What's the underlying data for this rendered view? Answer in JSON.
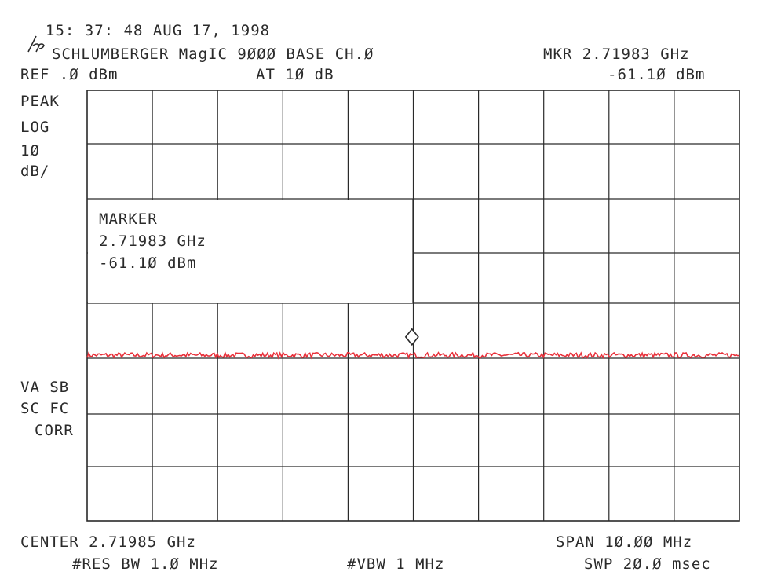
{
  "header": {
    "datetime": "15: 37: 48 AUG 17, 1998",
    "logo_icon": "hp-logo-icon",
    "instrument": "SCHLUMBERGER MagIC 9ØØØ BASE CH.Ø",
    "marker_readout": "MKR 2.71983 GHz",
    "ref_level": "REF .Ø dBm",
    "attenuation": "AT 1Ø dB",
    "marker_level_readout": "-61.1Ø dBm"
  },
  "left_labels": {
    "detector": "PEAK",
    "scale": "LOG",
    "scale_value": "1Ø",
    "scale_unit": "dB/",
    "status_line1": "VA SB",
    "status_line2": "SC FC",
    "status_line3": "CORR"
  },
  "marker_box": {
    "title": "MARKER",
    "frequency": "2.71983 GHz",
    "level": "-61.1Ø dBm"
  },
  "footer": {
    "center": "CENTER 2.71985 GHz",
    "span": "SPAN 1Ø.ØØ MHz",
    "res_bw": "#RES BW 1.Ø MHz",
    "vbw": "#VBW 1 MHz",
    "sweep": "SWP 2Ø.Ø msec"
  },
  "colors": {
    "trace": "#e8303a",
    "grid": "#2a2a2a",
    "text": "#2a2a2a",
    "background": "#ffffff"
  },
  "chart_data": {
    "type": "line",
    "x_unit": "GHz",
    "y_unit": "dBm",
    "xlim": [
      2.71485,
      2.72485
    ],
    "ylim": [
      -100,
      0
    ],
    "grid": true,
    "x_divisions": 10,
    "y_divisions": 10,
    "marker": {
      "x": 2.71983,
      "y": -61.1
    },
    "series": [
      {
        "noise_floor": -61.5,
        "noise_ripple": 0.6
      }
    ]
  }
}
